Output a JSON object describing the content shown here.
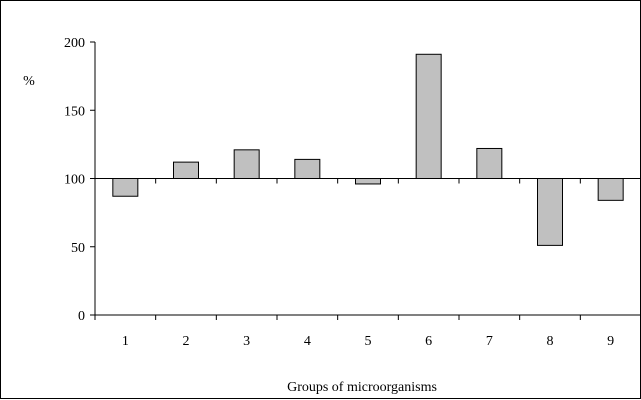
{
  "chart_data": {
    "type": "bar",
    "title": "",
    "xlabel": "Groups of microorganisms",
    "ylabel": "%",
    "ylim": [
      0,
      200
    ],
    "yticks": [
      0,
      50,
      100,
      150,
      200
    ],
    "baseline": 100,
    "grid": false,
    "categories": [
      "1",
      "2",
      "3",
      "4",
      "5",
      "6",
      "7",
      "8",
      "9"
    ],
    "values": [
      87,
      112,
      121,
      114,
      96,
      191,
      122,
      51,
      84
    ],
    "colors": {
      "bar_fill": "#c0c0c0",
      "bar_stroke": "#000000",
      "axis": "#000000"
    }
  }
}
